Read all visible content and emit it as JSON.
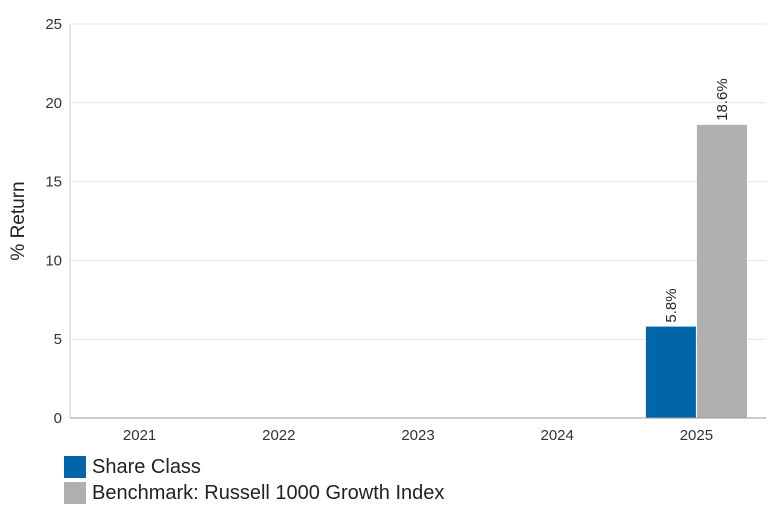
{
  "chart_data": {
    "type": "bar",
    "categories": [
      "2021",
      "2022",
      "2023",
      "2024",
      "2025"
    ],
    "series": [
      {
        "name": "Share Class",
        "color": "#0066aa",
        "values": [
          null,
          null,
          null,
          null,
          5.8
        ],
        "labels": [
          null,
          null,
          null,
          null,
          "5.8%"
        ]
      },
      {
        "name": "Benchmark: Russell 1000 Growth Index",
        "color": "#b0b0b0",
        "values": [
          null,
          null,
          null,
          null,
          18.6
        ],
        "labels": [
          null,
          null,
          null,
          null,
          "18.6%"
        ]
      }
    ],
    "ylabel": "% Return",
    "xlabel": "",
    "ylim": [
      0,
      25
    ],
    "yticks": [
      "0",
      "5",
      "10",
      "15",
      "20",
      "25"
    ],
    "grid": true,
    "legend_position": "bottom-left"
  }
}
